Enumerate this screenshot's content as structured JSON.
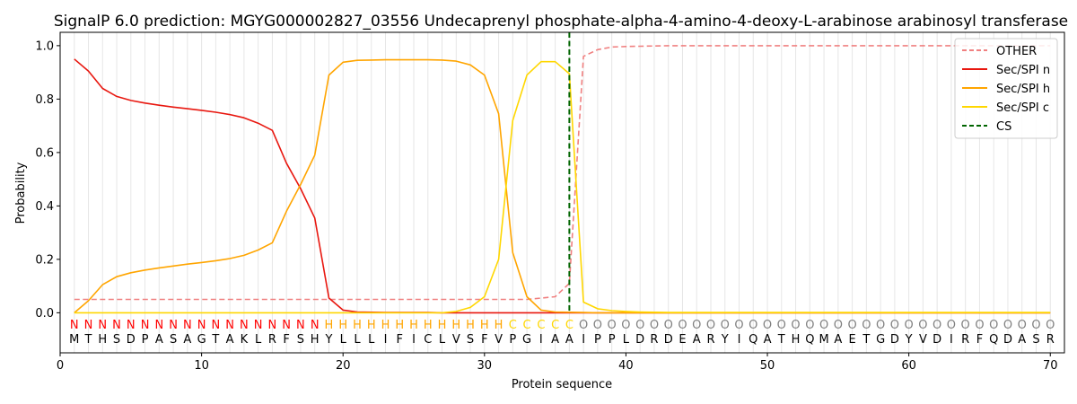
{
  "chart_data": {
    "type": "line",
    "title": "SignalP 6.0 prediction: MGYG000002827_03556 Undecaprenyl phosphate-alpha-4-amino-4-deoxy-L-arabinose arabinosyl transferase",
    "xlabel": "Protein sequence",
    "ylabel": "Probability",
    "xlim": [
      0,
      71
    ],
    "ylim": [
      -0.15,
      1.05
    ],
    "xticks": [
      0,
      10,
      20,
      30,
      40,
      50,
      60,
      70
    ],
    "yticks": [
      0.0,
      0.2,
      0.4,
      0.6,
      0.8,
      1.0
    ],
    "grid": "vertical lines at each residue",
    "legend_position": "top-right",
    "sequence": [
      "M",
      "T",
      "H",
      "S",
      "D",
      "P",
      "A",
      "S",
      "A",
      "G",
      "T",
      "A",
      "K",
      "L",
      "R",
      "F",
      "S",
      "H",
      "Y",
      "L",
      "L",
      "L",
      "I",
      "F",
      "I",
      "C",
      "L",
      "V",
      "S",
      "F",
      "V",
      "P",
      "G",
      "I",
      "A",
      "A",
      "I",
      "P",
      "P",
      "L",
      "D",
      "R",
      "D",
      "E",
      "A",
      "R",
      "Y",
      "I",
      "Q",
      "A",
      "T",
      "H",
      "Q",
      "M",
      "A",
      "E",
      "T",
      "G",
      "D",
      "Y",
      "V",
      "D",
      "I",
      "R",
      "F",
      "Q",
      "D",
      "A",
      "S",
      "R"
    ],
    "labels": [
      "N",
      "N",
      "N",
      "N",
      "N",
      "N",
      "N",
      "N",
      "N",
      "N",
      "N",
      "N",
      "N",
      "N",
      "N",
      "N",
      "N",
      "N",
      "H",
      "H",
      "H",
      "H",
      "H",
      "H",
      "H",
      "H",
      "H",
      "H",
      "H",
      "H",
      "H",
      "C",
      "C",
      "C",
      "C",
      "C",
      "O",
      "O",
      "O",
      "O",
      "O",
      "O",
      "O",
      "O",
      "O",
      "O",
      "O",
      "O",
      "O",
      "O",
      "O",
      "O",
      "O",
      "O",
      "O",
      "O",
      "O",
      "O",
      "O",
      "O",
      "O",
      "O",
      "O",
      "O",
      "O",
      "O",
      "O",
      "O",
      "O",
      "O"
    ],
    "label_colors": {
      "N": "#ff0000",
      "H": "#ffa500",
      "C": "#ffd700",
      "O": "#808080"
    },
    "cleavage_site": 36,
    "series": [
      {
        "name": "OTHER",
        "color": "#f08080",
        "style": "dashed",
        "values": [
          0.05,
          0.05,
          0.05,
          0.05,
          0.05,
          0.05,
          0.05,
          0.05,
          0.05,
          0.05,
          0.05,
          0.05,
          0.05,
          0.05,
          0.05,
          0.05,
          0.05,
          0.05,
          0.05,
          0.05,
          0.05,
          0.05,
          0.05,
          0.05,
          0.05,
          0.05,
          0.05,
          0.05,
          0.05,
          0.05,
          0.05,
          0.05,
          0.05,
          0.055,
          0.06,
          0.11,
          0.96,
          0.985,
          0.995,
          0.997,
          0.998,
          0.999,
          1.0,
          1.0,
          1.0,
          1.0,
          1.0,
          1.0,
          1.0,
          1.0,
          1.0,
          1.0,
          1.0,
          1.0,
          1.0,
          1.0,
          1.0,
          1.0,
          1.0,
          1.0,
          1.0,
          1.0,
          1.0,
          1.0,
          1.0,
          1.0,
          1.0,
          1.0,
          1.0,
          1.0
        ]
      },
      {
        "name": "Sec/SPI n",
        "color": "#e8170f",
        "style": "solid",
        "values": [
          0.95,
          0.905,
          0.84,
          0.81,
          0.795,
          0.785,
          0.777,
          0.77,
          0.764,
          0.758,
          0.751,
          0.742,
          0.73,
          0.71,
          0.683,
          0.56,
          0.465,
          0.355,
          0.055,
          0.01,
          0.003,
          0.002,
          0.001,
          0.001,
          0.001,
          0.001,
          0.0,
          0.0,
          0.0,
          0.0,
          0.0,
          0.0,
          0.0,
          0.0,
          0.0,
          0.0,
          0.0,
          0.0,
          0.0,
          0.0,
          0.0,
          0.0,
          0.0,
          0.0,
          0.0,
          0.0,
          0.0,
          0.0,
          0.0,
          0.0,
          0.0,
          0.0,
          0.0,
          0.0,
          0.0,
          0.0,
          0.0,
          0.0,
          0.0,
          0.0,
          0.0,
          0.0,
          0.0,
          0.0,
          0.0,
          0.0,
          0.0,
          0.0,
          0.0,
          0.0
        ]
      },
      {
        "name": "Sec/SPI h",
        "color": "#ffa500",
        "style": "solid",
        "values": [
          0.0,
          0.045,
          0.105,
          0.135,
          0.15,
          0.16,
          0.168,
          0.175,
          0.182,
          0.188,
          0.195,
          0.203,
          0.215,
          0.235,
          0.262,
          0.38,
          0.48,
          0.59,
          0.89,
          0.938,
          0.945,
          0.946,
          0.947,
          0.947,
          0.947,
          0.947,
          0.946,
          0.942,
          0.928,
          0.89,
          0.745,
          0.225,
          0.06,
          0.01,
          0.003,
          0.002,
          0.001,
          0.0,
          0.0,
          0.0,
          0.0,
          0.0,
          0.0,
          0.0,
          0.0,
          0.0,
          0.0,
          0.0,
          0.0,
          0.0,
          0.0,
          0.0,
          0.0,
          0.0,
          0.0,
          0.0,
          0.0,
          0.0,
          0.0,
          0.0,
          0.0,
          0.0,
          0.0,
          0.0,
          0.0,
          0.0,
          0.0,
          0.0,
          0.0,
          0.0
        ]
      },
      {
        "name": "Sec/SPI c",
        "color": "#ffd700",
        "style": "solid",
        "values": [
          0.0,
          0.0,
          0.0,
          0.0,
          0.0,
          0.0,
          0.0,
          0.0,
          0.0,
          0.0,
          0.0,
          0.0,
          0.0,
          0.0,
          0.0,
          0.0,
          0.0,
          0.0,
          0.0,
          0.0,
          0.0,
          0.0,
          0.0,
          0.0,
          0.0,
          0.0,
          0.0,
          0.005,
          0.02,
          0.06,
          0.2,
          0.72,
          0.89,
          0.94,
          0.94,
          0.895,
          0.04,
          0.015,
          0.008,
          0.005,
          0.003,
          0.002,
          0.001,
          0.001,
          0.001,
          0.001,
          0.001,
          0.001,
          0.001,
          0.001,
          0.001,
          0.001,
          0.001,
          0.001,
          0.001,
          0.001,
          0.001,
          0.001,
          0.001,
          0.001,
          0.001,
          0.001,
          0.001,
          0.001,
          0.001,
          0.001,
          0.001,
          0.001,
          0.001,
          0.001
        ]
      },
      {
        "name": "CS",
        "color": "#006400",
        "style": "dashed",
        "kind": "vline"
      }
    ]
  }
}
